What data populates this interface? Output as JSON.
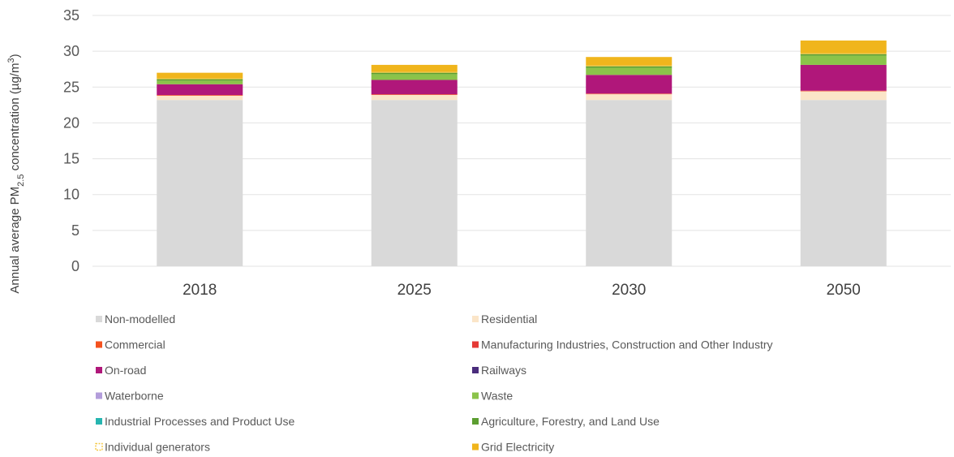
{
  "chart_data": {
    "type": "bar",
    "stacked": true,
    "title": "",
    "xlabel": "",
    "ylabel": {
      "prefix": "Annual average PM",
      "subscript": "2.5",
      "middle": " concentration (µg/m",
      "superscript": "3",
      "suffix": ")"
    },
    "ylim": [
      0,
      35
    ],
    "yticks": [
      0,
      5,
      10,
      15,
      20,
      25,
      30,
      35
    ],
    "grid": true,
    "legend_position": "bottom",
    "categories": [
      "2018",
      "2025",
      "2030",
      "2050"
    ],
    "series": [
      {
        "name": "Non-modelled",
        "color": "#d9d9d9",
        "values": [
          23.2,
          23.2,
          23.2,
          23.2
        ]
      },
      {
        "name": "Residential",
        "color": "#fbe5c8",
        "values": [
          0.6,
          0.7,
          0.8,
          1.2
        ]
      },
      {
        "name": "Commercial",
        "color": "#f4511e",
        "values": [
          0.05,
          0.05,
          0.05,
          0.05
        ]
      },
      {
        "name": "Manufacturing Industries, Construction and Other Industry",
        "color": "#e53935",
        "values": [
          0.05,
          0.05,
          0.05,
          0.05
        ]
      },
      {
        "name": "On-road",
        "color": "#b0177a",
        "values": [
          1.5,
          2.0,
          2.6,
          3.6
        ]
      },
      {
        "name": "Railways",
        "color": "#4a2c7c",
        "values": [
          0.0,
          0.0,
          0.0,
          0.0
        ]
      },
      {
        "name": "Waterborne",
        "color": "#b39ddb",
        "values": [
          0.0,
          0.0,
          0.0,
          0.0
        ]
      },
      {
        "name": "Waste",
        "color": "#8bc34a",
        "values": [
          0.5,
          0.8,
          1.0,
          1.3
        ]
      },
      {
        "name": "Industrial Processes and Product Use",
        "color": "#26b5b0",
        "values": [
          0.0,
          0.0,
          0.0,
          0.0
        ]
      },
      {
        "name": "Agriculture, Forestry, and Land Use",
        "color": "#5c9e31",
        "values": [
          0.2,
          0.2,
          0.2,
          0.2
        ]
      },
      {
        "name": "Individual generators",
        "color": "#f5c842",
        "pattern": "dashed",
        "values": [
          0.1,
          0.1,
          0.1,
          0.1
        ]
      },
      {
        "name": "Grid Electricity",
        "color": "#f0b51c",
        "values": [
          0.8,
          1.0,
          1.2,
          1.8
        ]
      }
    ]
  }
}
